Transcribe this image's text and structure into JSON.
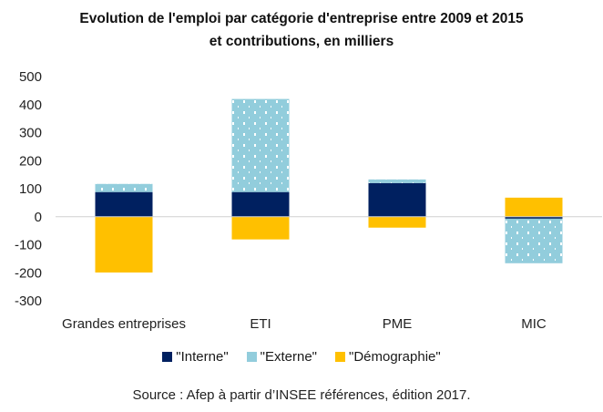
{
  "chart_data": {
    "type": "bar",
    "stacked": true,
    "title_line1": "Evolution de l'emploi par catégorie d'entreprise entre 2009 et 2015",
    "title_line2": "et contributions, en milliers",
    "categories": [
      "Grandes entreprises",
      "ETI",
      "PME",
      "MIC"
    ],
    "series": [
      {
        "name": "\"Interne\"",
        "color": "#002060",
        "pattern": "solid",
        "values": [
          88,
          88,
          120,
          -7
        ]
      },
      {
        "name": "\"Externe\"",
        "color": "#92CDDC",
        "pattern": "dots",
        "values": [
          29,
          332,
          13,
          -159
        ]
      },
      {
        "name": "\"Démographie\"",
        "color": "#FFC000",
        "pattern": "solid",
        "values": [
          -199,
          -81,
          -39,
          68
        ]
      }
    ],
    "ylim": [
      -300,
      500
    ],
    "yticks": [
      500,
      400,
      300,
      200,
      100,
      0,
      -100,
      -200,
      -300
    ],
    "xlabel": "",
    "ylabel": "",
    "grid": false,
    "legend_position": "bottom",
    "source": "Source : Afep à partir d’INSEE références, édition 2017."
  }
}
